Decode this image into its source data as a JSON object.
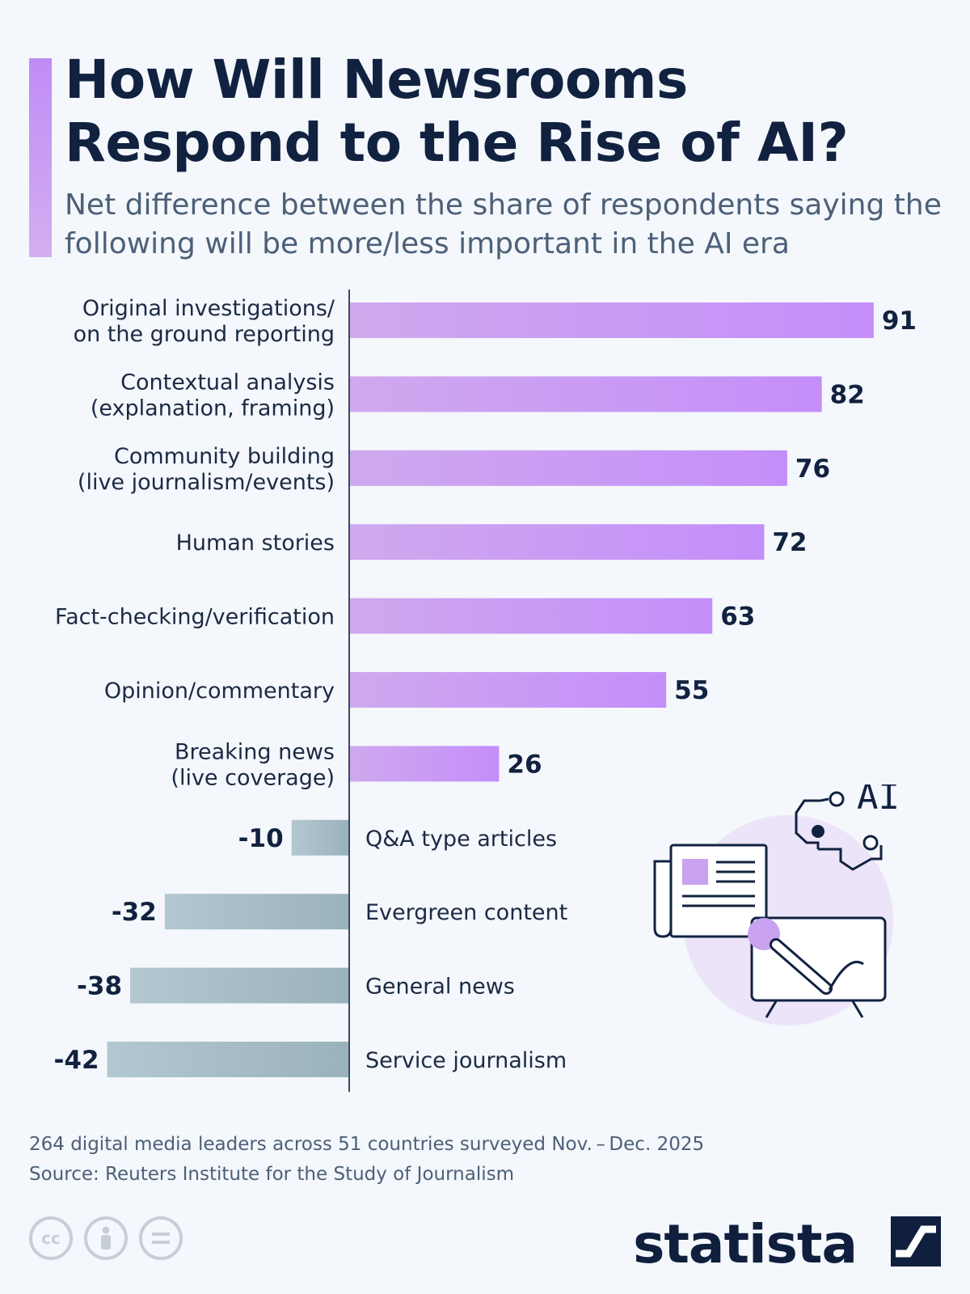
{
  "title": "How Will Newsrooms Respond to the Rise of AI?",
  "subtitle": "Net difference between the share of respondents saying the following will be more/less important in the AI era",
  "chart_data": {
    "type": "bar",
    "orientation": "horizontal",
    "categories": [
      [
        "Original investigations/",
        "on the ground reporting"
      ],
      [
        "Contextual analysis",
        "(explanation, framing)"
      ],
      [
        "Community building",
        "(live journalism/events)"
      ],
      [
        "Human stories"
      ],
      [
        "Fact-checking/verification"
      ],
      [
        "Opinion/commentary"
      ],
      [
        "Breaking news",
        "(live coverage)"
      ],
      [
        "Q&A type articles"
      ],
      [
        "Evergreen content"
      ],
      [
        "General news"
      ],
      [
        "Service journalism"
      ]
    ],
    "values": [
      91,
      82,
      76,
      72,
      63,
      55,
      26,
      -10,
      -32,
      -38,
      -42
    ],
    "value_labels": [
      "91",
      "82",
      "76",
      "72",
      "63",
      "55",
      "26",
      "-10",
      "-32",
      "-38",
      "-42"
    ],
    "xlim": [
      -45,
      100
    ],
    "grid": false,
    "colors": {
      "positive_start": "#cfa9ee",
      "positive_end": "#c48ef9",
      "negative_start": "#b3c7d0",
      "negative_end": "#9ab2bc",
      "axis": "#3a4a60"
    }
  },
  "notes": {
    "survey": "264 digital media leaders across 51 countries surveyed Nov. – Dec. 2025",
    "source": "Source: Reuters Institute for the Study of Journalism"
  },
  "illustration": {
    "label": "AI"
  },
  "footer": {
    "brand": "statista",
    "license_icons": [
      "cc",
      "attribution-icon",
      "no-derivatives-icon"
    ],
    "cc_text": "cc"
  }
}
